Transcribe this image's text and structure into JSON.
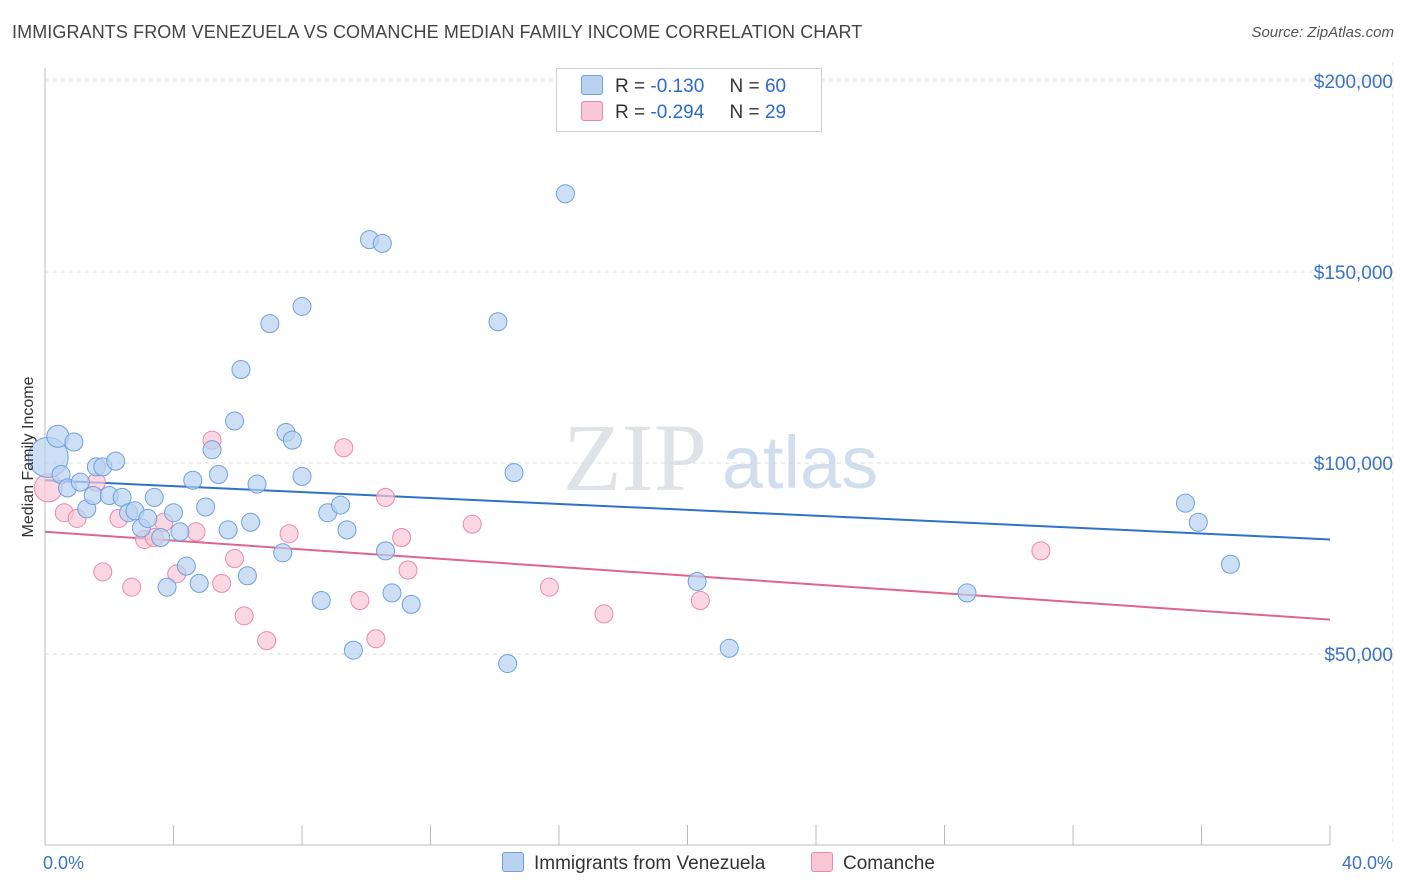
{
  "title": "IMMIGRANTS FROM VENEZUELA VS COMANCHE MEDIAN FAMILY INCOME CORRELATION CHART",
  "source": "Source: ZipAtlas.com",
  "watermark": {
    "zip": "ZIP",
    "atlas": "atlas"
  },
  "colors": {
    "blue_fill": "#b8d2f0",
    "blue_stroke": "#6fa0dc",
    "blue_line": "#2f72c9",
    "pink_fill": "#f8c6d5",
    "pink_stroke": "#e88aaa",
    "pink_line": "#e0648e",
    "tick_text": "#3b73c4",
    "grid": "#dddddd"
  },
  "legend": {
    "rows": [
      {
        "r_label": "R =",
        "r_value": "-0.130",
        "n_label": "N =",
        "n_value": "60"
      },
      {
        "r_label": "R =",
        "r_value": "-0.294",
        "n_label": "N =",
        "n_value": "29"
      }
    ]
  },
  "bottom_legend": [
    "Immigrants from Venezuela",
    "Comanche"
  ],
  "chart_data": {
    "type": "scatter",
    "xlabel": "",
    "ylabel": "Median Family Income",
    "xlim": [
      0,
      40
    ],
    "ylim": [
      0,
      205000
    ],
    "x_tick_labels": [
      "0.0%",
      "40.0%"
    ],
    "y_ticks": [
      50000,
      100000,
      150000,
      200000
    ],
    "y_tick_labels": [
      "$50,000",
      "$100,000",
      "$150,000",
      "$200,000"
    ],
    "grid": true,
    "series": [
      {
        "name": "Immigrants from Venezuela",
        "color": "blue",
        "trend": {
          "x": [
            0,
            40
          ],
          "y": [
            95500,
            80000
          ]
        },
        "points": [
          [
            0.1,
            101500,
            20
          ],
          [
            0.4,
            107000,
            11
          ],
          [
            0.9,
            105500,
            9
          ],
          [
            0.5,
            97000,
            9
          ],
          [
            0.7,
            93500,
            9
          ],
          [
            1.1,
            95000,
            9
          ],
          [
            1.3,
            88000,
            9
          ],
          [
            1.5,
            91500,
            9
          ],
          [
            1.6,
            99000,
            9
          ],
          [
            1.8,
            99000,
            9
          ],
          [
            2.2,
            100500,
            9
          ],
          [
            2.0,
            91500,
            9
          ],
          [
            2.4,
            91000,
            9
          ],
          [
            2.6,
            87000,
            9
          ],
          [
            2.8,
            87500,
            9
          ],
          [
            3.0,
            83000,
            9
          ],
          [
            3.2,
            85500,
            9
          ],
          [
            3.4,
            91000,
            9
          ],
          [
            3.6,
            80500,
            9
          ],
          [
            3.8,
            67500,
            9
          ],
          [
            4.0,
            87000,
            9
          ],
          [
            4.2,
            82000,
            9
          ],
          [
            4.4,
            73000,
            9
          ],
          [
            4.6,
            95500,
            9
          ],
          [
            4.8,
            68500,
            9
          ],
          [
            5.0,
            88500,
            9
          ],
          [
            5.2,
            103500,
            9
          ],
          [
            5.4,
            97000,
            9
          ],
          [
            5.7,
            82500,
            9
          ],
          [
            5.9,
            111000,
            9
          ],
          [
            6.1,
            124500,
            9
          ],
          [
            6.3,
            70500,
            9
          ],
          [
            6.4,
            84500,
            9
          ],
          [
            6.6,
            94500,
            9
          ],
          [
            7.0,
            136500,
            9
          ],
          [
            7.4,
            76500,
            9
          ],
          [
            7.5,
            108000,
            9
          ],
          [
            7.7,
            106000,
            9
          ],
          [
            8.0,
            96500,
            9
          ],
          [
            8.0,
            141000,
            9
          ],
          [
            8.6,
            64000,
            9
          ],
          [
            8.8,
            87000,
            9
          ],
          [
            9.2,
            89000,
            9
          ],
          [
            9.4,
            82500,
            9
          ],
          [
            9.6,
            51000,
            9
          ],
          [
            10.1,
            158500,
            9
          ],
          [
            10.5,
            157500,
            9
          ],
          [
            10.6,
            77000,
            9
          ],
          [
            10.8,
            66000,
            9
          ],
          [
            11.4,
            63000,
            9
          ],
          [
            14.1,
            137000,
            9
          ],
          [
            14.4,
            47500,
            9
          ],
          [
            14.6,
            97500,
            9
          ],
          [
            16.2,
            170500,
            9
          ],
          [
            20.3,
            69000,
            9
          ],
          [
            21.3,
            51500,
            9
          ],
          [
            28.7,
            66000,
            9
          ],
          [
            35.5,
            89500,
            9
          ],
          [
            35.9,
            84500,
            9
          ],
          [
            36.9,
            73500,
            9
          ]
        ]
      },
      {
        "name": "Comanche",
        "color": "pink",
        "trend": {
          "x": [
            0,
            40
          ],
          "y": [
            82000,
            59000
          ]
        },
        "points": [
          [
            0.1,
            93500,
            14
          ],
          [
            0.6,
            87000,
            9
          ],
          [
            1.0,
            85500,
            9
          ],
          [
            1.6,
            95000,
            9
          ],
          [
            1.8,
            71500,
            9
          ],
          [
            2.3,
            85500,
            9
          ],
          [
            2.7,
            67500,
            9
          ],
          [
            3.1,
            80000,
            9
          ],
          [
            3.4,
            80500,
            9
          ],
          [
            3.7,
            84500,
            9
          ],
          [
            4.1,
            71000,
            9
          ],
          [
            4.7,
            82000,
            9
          ],
          [
            5.2,
            106000,
            9
          ],
          [
            5.5,
            68500,
            9
          ],
          [
            5.9,
            75000,
            9
          ],
          [
            6.2,
            60000,
            9
          ],
          [
            6.9,
            53500,
            9
          ],
          [
            7.6,
            81500,
            9
          ],
          [
            9.3,
            104000,
            9
          ],
          [
            9.8,
            64000,
            9
          ],
          [
            10.3,
            54000,
            9
          ],
          [
            10.6,
            91000,
            9
          ],
          [
            11.1,
            80500,
            9
          ],
          [
            11.3,
            72000,
            9
          ],
          [
            13.3,
            84000,
            9
          ],
          [
            15.7,
            67500,
            9
          ],
          [
            17.4,
            60500,
            9
          ],
          [
            20.4,
            64000,
            9
          ],
          [
            31.0,
            77000,
            9
          ]
        ]
      }
    ]
  }
}
